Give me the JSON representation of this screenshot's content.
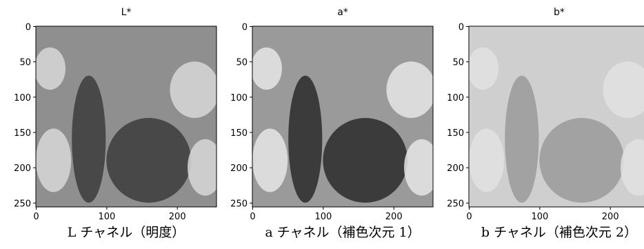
{
  "panels": [
    {
      "title": "L*",
      "caption": "L チャネル（明度）",
      "tone": "#8f8f8f",
      "dark": "#3c3c3c",
      "light": "#d8d8d8",
      "xlim": [
        -0.5,
        255.5
      ],
      "ylim": [
        255.5,
        -0.5
      ],
      "xticks": [
        0,
        100,
        200
      ],
      "yticks": [
        0,
        50,
        100,
        150,
        200,
        250
      ]
    },
    {
      "title": "a*",
      "caption": "a チャネル（補色次元 1）",
      "tone": "#9a9a9a",
      "dark": "#2a2a2a",
      "light": "#e6e6e6",
      "xlim": [
        -0.5,
        255.5
      ],
      "ylim": [
        255.5,
        -0.5
      ],
      "xticks": [
        0,
        100,
        200
      ],
      "yticks": [
        0,
        50,
        100,
        150,
        200,
        250
      ]
    },
    {
      "title": "b*",
      "caption": "b チャネル（補色次元 2）",
      "tone": "#cfcfcf",
      "dark": "#9a9a9a",
      "light": "#e2e2e2",
      "xlim": [
        -0.5,
        255.5
      ],
      "ylim": [
        255.5,
        -0.5
      ],
      "xticks": [
        0,
        100,
        200
      ],
      "yticks": [
        0,
        50,
        100,
        150,
        200,
        250
      ]
    }
  ]
}
